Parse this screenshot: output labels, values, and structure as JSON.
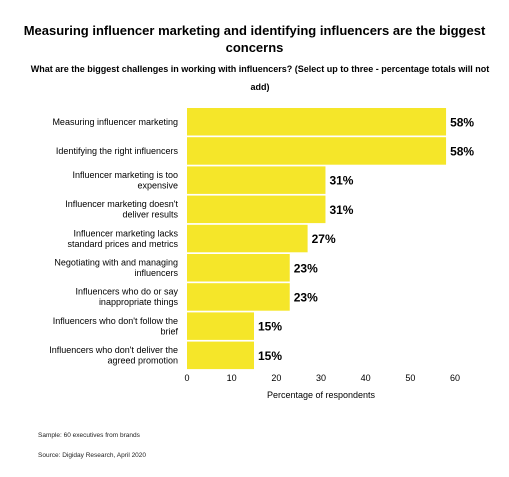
{
  "title": "Measuring influencer marketing and identifying influencers are the biggest concerns",
  "subtitle": "What are the biggest challenges in working with influencers? (Select up to three - percentage totals will not add)",
  "footnotes": {
    "sample": "Sample: 60 executives from brands",
    "source": "Source: Digiday Research, April 2020"
  },
  "colors": {
    "bar": "#f5e629",
    "text": "#000000"
  },
  "chart_data": {
    "type": "bar",
    "orientation": "horizontal",
    "categories": [
      "Measuring influencer marketing",
      "Identifying the right influencers",
      "Influencer marketing is too expensive",
      "Influencer marketing doesn't deliver results",
      "Influencer marketing lacks standard prices and metrics",
      "Negotiating with and managing influencers",
      "Influencers who do or say inappropriate things",
      "Influencers who don't follow the brief",
      "Influencers who don't deliver the agreed promotion"
    ],
    "category_lines": [
      [
        "Measuring influencer marketing"
      ],
      [
        "Identifying the right influencers"
      ],
      [
        "Influencer marketing is too",
        "expensive"
      ],
      [
        "Influencer marketing doesn't",
        "deliver results"
      ],
      [
        "Influencer marketing lacks",
        "standard prices and metrics"
      ],
      [
        "Negotiating with and managing",
        "influencers"
      ],
      [
        "Influencers who do or say",
        "inappropriate things"
      ],
      [
        "Influencers who don't follow the",
        "brief"
      ],
      [
        "Influencers who don't deliver the",
        "agreed promotion"
      ]
    ],
    "values": [
      58,
      58,
      31,
      31,
      27,
      23,
      23,
      15,
      15
    ],
    "value_labels": [
      "58%",
      "58%",
      "31%",
      "31%",
      "27%",
      "23%",
      "23%",
      "15%",
      "15%"
    ],
    "xticks": [
      "0",
      "10",
      "20",
      "30",
      "40",
      "50",
      "60"
    ],
    "xlim": [
      0,
      60
    ],
    "xlabel": "Percentage of respondents",
    "grid": false
  }
}
